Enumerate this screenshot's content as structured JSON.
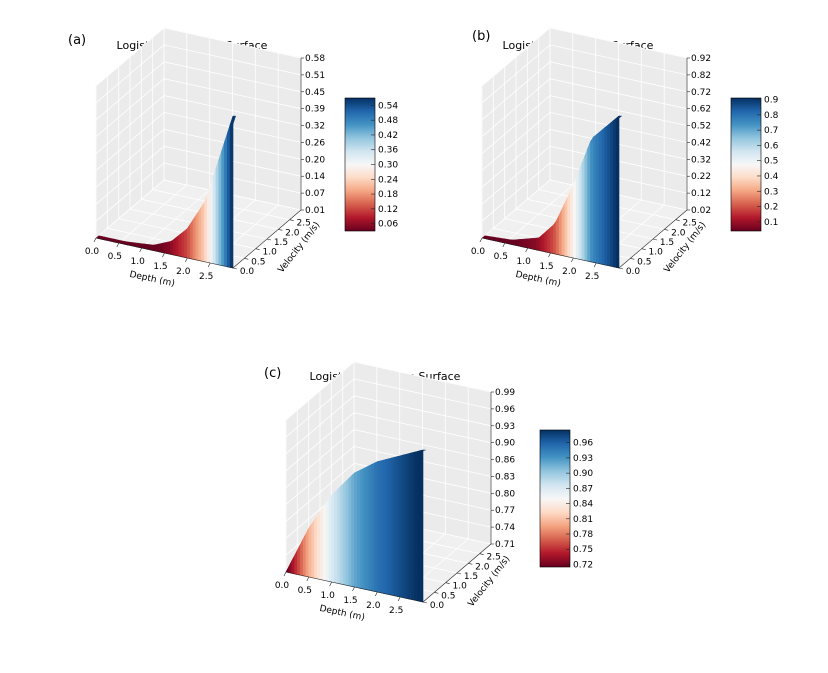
{
  "chart_data": [
    {
      "type": "surface",
      "panel_label": "(a)",
      "title": "Logistic Regression Surface",
      "xlabel": "Depth (m)",
      "ylabel": "Velocity (m/s)",
      "x_ticks": [
        "0.0",
        "0.5",
        "1.0",
        "1.5",
        "2.0",
        "2.5"
      ],
      "y_ticks": [
        "0.0",
        "0.5",
        "1.0",
        "1.5",
        "2.0",
        "2.5"
      ],
      "z_ticks": [
        "0.01",
        "0.07",
        "0.14",
        "0.20",
        "0.26",
        "0.32",
        "0.39",
        "0.45",
        "0.51",
        "0.58"
      ],
      "xlim": [
        0,
        3
      ],
      "ylim": [
        0,
        3
      ],
      "zlim": [
        0.01,
        0.58
      ],
      "colorbar_ticks": [
        "0.06",
        "0.12",
        "0.18",
        "0.24",
        "0.30",
        "0.36",
        "0.42",
        "0.48",
        "0.54"
      ],
      "colorbar_range": [
        0.03,
        0.57
      ],
      "colormap": "RdBu",
      "ridge": {
        "x": [
          0,
          0.6,
          1.2,
          1.6,
          2.0,
          2.4,
          3.0
        ],
        "z": [
          0.01,
          0.01,
          0.02,
          0.05,
          0.12,
          0.24,
          0.58
        ]
      }
    },
    {
      "type": "surface",
      "panel_label": "(b)",
      "title": "Logistic Regression Surface",
      "xlabel": "Depth (m)",
      "ylabel": "Velocity (m/s)",
      "x_ticks": [
        "0.0",
        "0.5",
        "1.0",
        "1.5",
        "2.0",
        "2.5"
      ],
      "y_ticks": [
        "0.0",
        "0.5",
        "1.0",
        "1.5",
        "2.0",
        "2.5"
      ],
      "z_ticks": [
        "0.02",
        "0.12",
        "0.22",
        "0.32",
        "0.42",
        "0.52",
        "0.62",
        "0.72",
        "0.82",
        "0.92"
      ],
      "xlim": [
        0,
        3
      ],
      "ylim": [
        0,
        3
      ],
      "zlim": [
        0.02,
        0.92
      ],
      "colorbar_ticks": [
        "0.1",
        "0.2",
        "0.3",
        "0.4",
        "0.5",
        "0.6",
        "0.7",
        "0.8",
        "0.9"
      ],
      "colorbar_range": [
        0.04,
        0.91
      ],
      "colormap": "RdBu",
      "ridge": {
        "x": [
          0,
          0.6,
          1.2,
          1.6,
          2.0,
          2.4,
          3.0
        ],
        "z": [
          0.02,
          0.03,
          0.08,
          0.2,
          0.45,
          0.75,
          0.92
        ]
      }
    },
    {
      "type": "surface",
      "panel_label": "(c)",
      "title": "Logistic Regression Surface",
      "xlabel": "Depth (m)",
      "ylabel": "Velocity (m/s)",
      "x_ticks": [
        "0.0",
        "0.5",
        "1.0",
        "1.5",
        "2.0",
        "2.5"
      ],
      "y_ticks": [
        "0.0",
        "0.5",
        "1.0",
        "1.5",
        "2.0",
        "2.5"
      ],
      "z_ticks": [
        "0.71",
        "0.74",
        "0.77",
        "0.80",
        "0.83",
        "0.86",
        "0.90",
        "0.93",
        "0.96",
        "0.99"
      ],
      "xlim": [
        0,
        3
      ],
      "ylim": [
        0,
        3
      ],
      "zlim": [
        0.71,
        0.99
      ],
      "colorbar_ticks": [
        "0.72",
        "0.75",
        "0.78",
        "0.81",
        "0.84",
        "0.87",
        "0.90",
        "0.93",
        "0.96"
      ],
      "colorbar_range": [
        0.715,
        0.985
      ],
      "colormap": "RdBu",
      "ridge": {
        "x": [
          0,
          0.5,
          1.0,
          1.5,
          2.0,
          2.5,
          3.0
        ],
        "z": [
          0.71,
          0.8,
          0.87,
          0.92,
          0.95,
          0.97,
          0.99
        ]
      }
    }
  ]
}
